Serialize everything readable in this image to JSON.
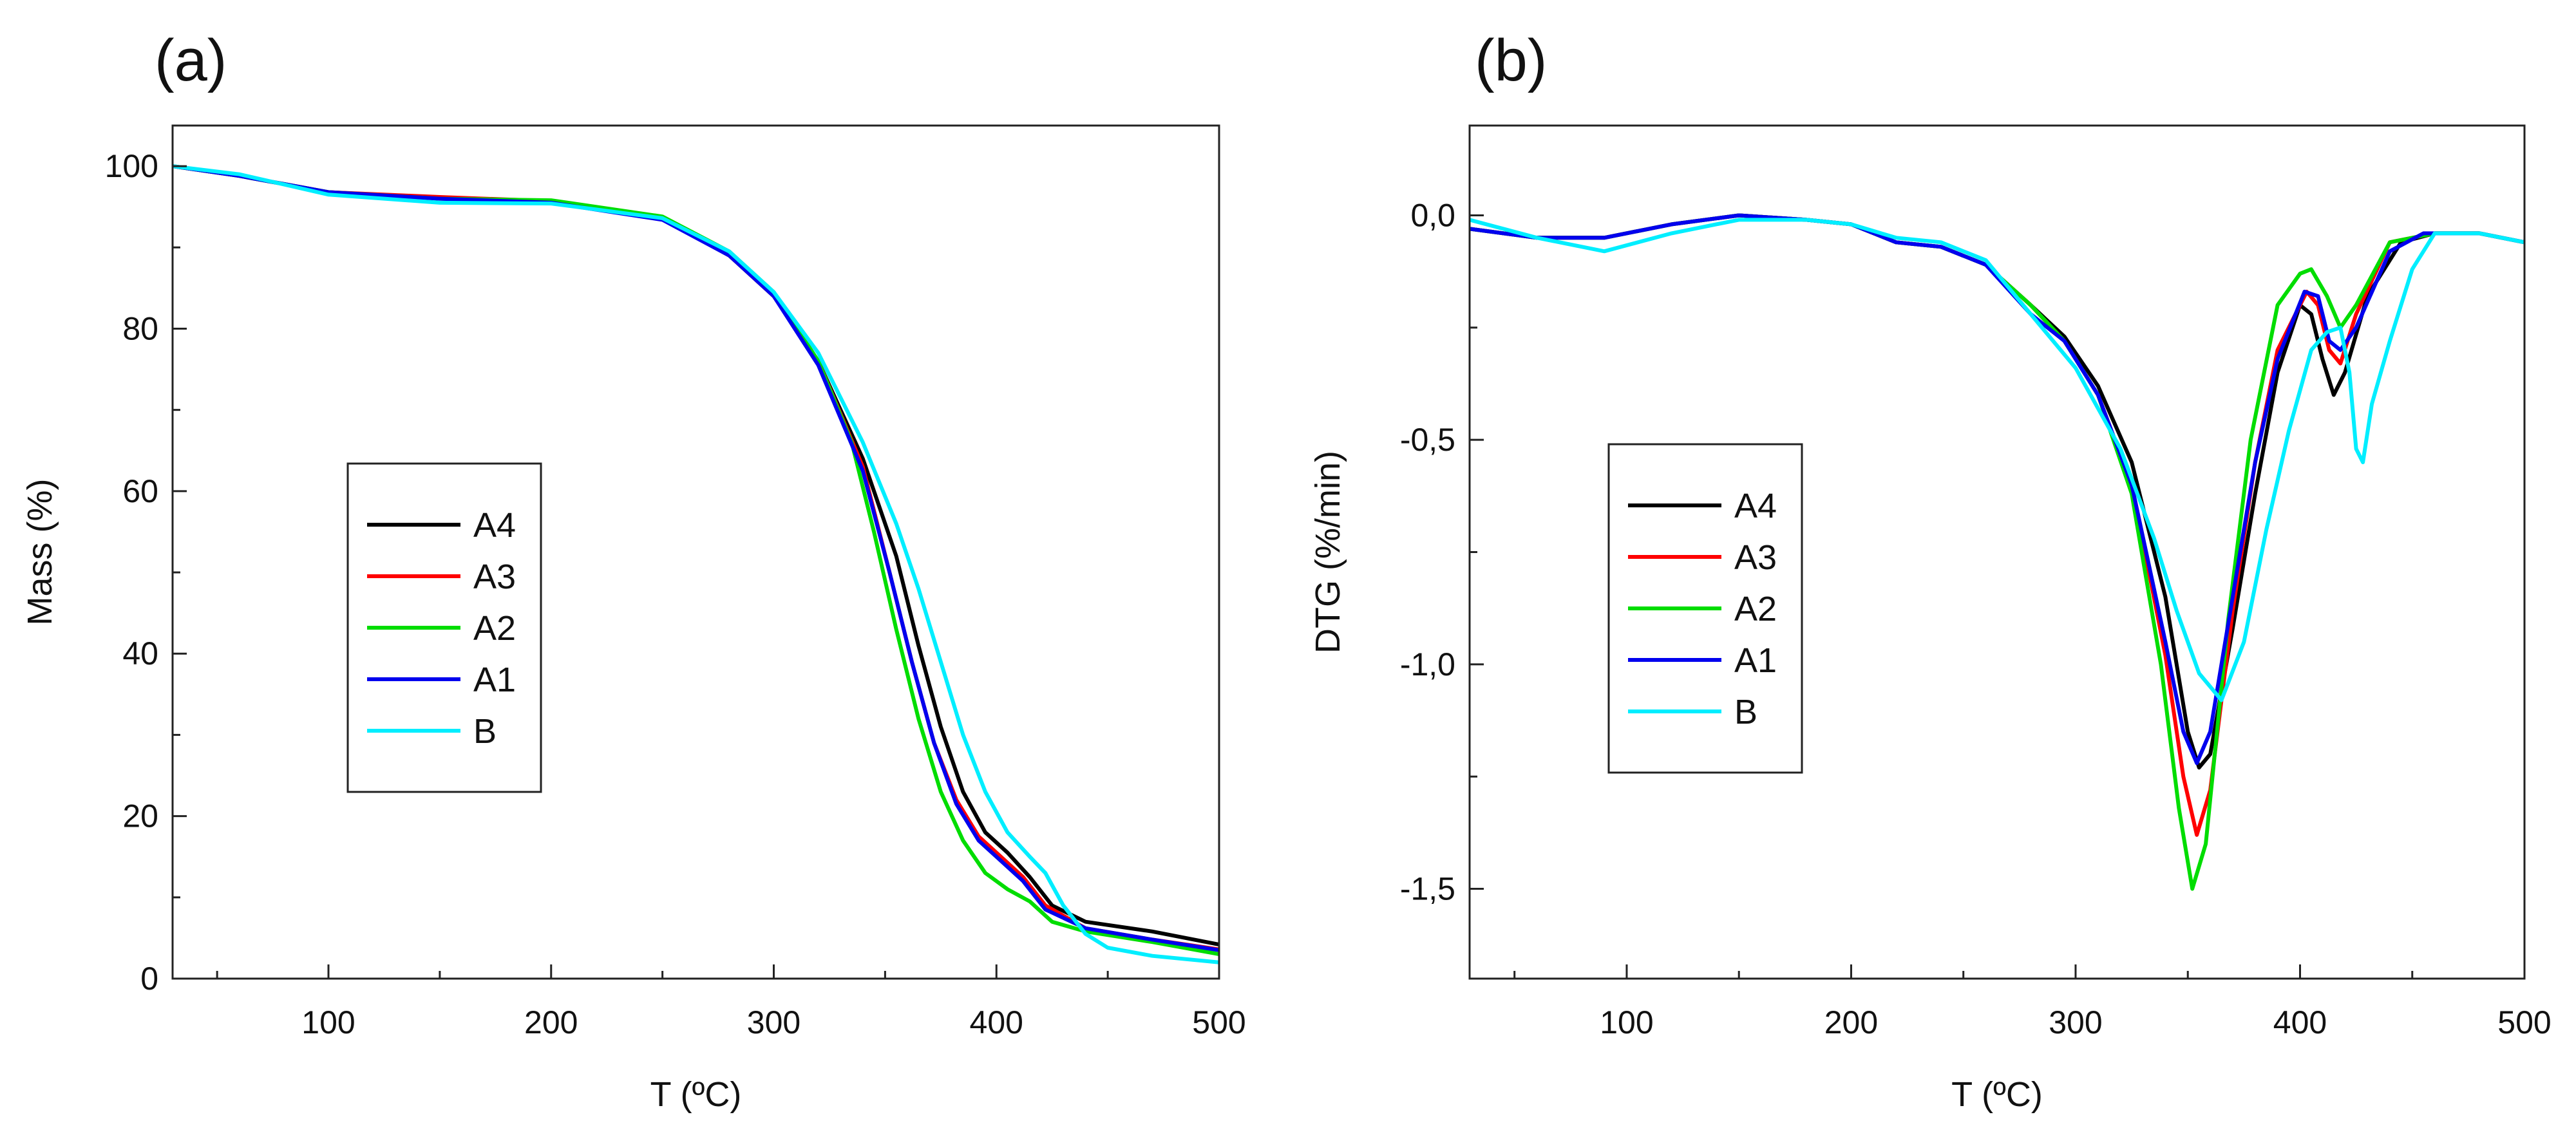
{
  "colors": {
    "A4": "#000000",
    "A3": "#ff0000",
    "A2": "#00dd00",
    "A1": "#0000ee",
    "B": "#00eeff"
  },
  "chart_data": [
    {
      "panel": "(a)",
      "type": "line",
      "xlabel": "T (ºC)",
      "ylabel": "Mass (%)",
      "xlim": [
        30,
        500
      ],
      "ylim": [
        0,
        105
      ],
      "xticks": [
        100,
        200,
        300,
        400,
        500
      ],
      "yticks": [
        0,
        20,
        40,
        60,
        80,
        100
      ],
      "ytick_labels": [
        "0",
        "20",
        "40",
        "60",
        "80",
        "100"
      ],
      "legend": [
        "A4",
        "A3",
        "A2",
        "A1",
        "B"
      ],
      "legend_position": "center-left",
      "series": [
        {
          "name": "A4",
          "points": [
            [
              30,
              100
            ],
            [
              60,
              98.8
            ],
            [
              100,
              96.8
            ],
            [
              150,
              96.1
            ],
            [
              200,
              95.6
            ],
            [
              250,
              93.5
            ],
            [
              280,
              89
            ],
            [
              300,
              84
            ],
            [
              320,
              76
            ],
            [
              340,
              64
            ],
            [
              355,
              52
            ],
            [
              365,
              41
            ],
            [
              375,
              31
            ],
            [
              385,
              23
            ],
            [
              395,
              18
            ],
            [
              405,
              15.5
            ],
            [
              415,
              12.5
            ],
            [
              425,
              9
            ],
            [
              440,
              7
            ],
            [
              470,
              5.8
            ],
            [
              500,
              4.2
            ]
          ]
        },
        {
          "name": "A3",
          "points": [
            [
              30,
              100
            ],
            [
              60,
              98.8
            ],
            [
              100,
              96.8
            ],
            [
              150,
              96.2
            ],
            [
              200,
              95.7
            ],
            [
              250,
              93.6
            ],
            [
              280,
              89
            ],
            [
              300,
              84
            ],
            [
              320,
              76
            ],
            [
              340,
              63
            ],
            [
              352,
              50
            ],
            [
              362,
              39
            ],
            [
              372,
              29
            ],
            [
              382,
              22
            ],
            [
              392,
              17.5
            ],
            [
              402,
              15
            ],
            [
              412,
              12.5
            ],
            [
              422,
              9
            ],
            [
              440,
              6.2
            ],
            [
              470,
              4.8
            ],
            [
              500,
              3.6
            ]
          ]
        },
        {
          "name": "A2",
          "points": [
            [
              30,
              100
            ],
            [
              60,
              98.8
            ],
            [
              100,
              96.8
            ],
            [
              150,
              96
            ],
            [
              200,
              95.8
            ],
            [
              250,
              93.8
            ],
            [
              280,
              89.5
            ],
            [
              300,
              84.5
            ],
            [
              320,
              76
            ],
            [
              335,
              66
            ],
            [
              345,
              55
            ],
            [
              355,
              43
            ],
            [
              365,
              32
            ],
            [
              375,
              23
            ],
            [
              385,
              17
            ],
            [
              395,
              13
            ],
            [
              405,
              11
            ],
            [
              415,
              9.5
            ],
            [
              425,
              7
            ],
            [
              440,
              5.8
            ],
            [
              470,
              4.5
            ],
            [
              500,
              3
            ]
          ]
        },
        {
          "name": "A1",
          "points": [
            [
              30,
              100
            ],
            [
              60,
              98.8
            ],
            [
              100,
              96.8
            ],
            [
              150,
              96
            ],
            [
              200,
              95.5
            ],
            [
              250,
              93.4
            ],
            [
              280,
              89
            ],
            [
              300,
              84
            ],
            [
              320,
              75.5
            ],
            [
              340,
              62.5
            ],
            [
              352,
              50
            ],
            [
              362,
              39
            ],
            [
              372,
              29
            ],
            [
              382,
              21.5
            ],
            [
              392,
              17
            ],
            [
              402,
              14.5
            ],
            [
              412,
              12
            ],
            [
              422,
              8.5
            ],
            [
              440,
              6.2
            ],
            [
              470,
              4.8
            ],
            [
              500,
              3.5
            ]
          ]
        },
        {
          "name": "B",
          "points": [
            [
              30,
              100
            ],
            [
              60,
              99
            ],
            [
              100,
              96.5
            ],
            [
              150,
              95.5
            ],
            [
              200,
              95.4
            ],
            [
              250,
              93.6
            ],
            [
              280,
              89.5
            ],
            [
              300,
              84.5
            ],
            [
              320,
              77
            ],
            [
              340,
              66
            ],
            [
              355,
              56
            ],
            [
              365,
              48
            ],
            [
              375,
              39
            ],
            [
              385,
              30
            ],
            [
              395,
              23
            ],
            [
              405,
              18
            ],
            [
              415,
              15
            ],
            [
              422,
              13
            ],
            [
              430,
              9
            ],
            [
              440,
              5.5
            ],
            [
              450,
              3.8
            ],
            [
              470,
              2.8
            ],
            [
              500,
              2
            ]
          ]
        }
      ]
    },
    {
      "panel": "(b)",
      "type": "line",
      "xlabel": "T (ºC)",
      "ylabel": "DTG (%/min)",
      "xlim": [
        30,
        500
      ],
      "ylim": [
        -1.7,
        0.2
      ],
      "xticks": [
        100,
        200,
        300,
        400,
        500
      ],
      "yticks": [
        0,
        -0.5,
        -1.0,
        -1.5
      ],
      "ytick_labels": [
        "0,0",
        "-0,5",
        "-1,0",
        "-1,5"
      ],
      "legend": [
        "A4",
        "A3",
        "A2",
        "A1",
        "B"
      ],
      "legend_position": "center-left",
      "series": [
        {
          "name": "A4",
          "points": [
            [
              30,
              -0.03
            ],
            [
              60,
              -0.05
            ],
            [
              90,
              -0.05
            ],
            [
              120,
              -0.02
            ],
            [
              150,
              0
            ],
            [
              180,
              -0.01
            ],
            [
              200,
              -0.02
            ],
            [
              220,
              -0.06
            ],
            [
              240,
              -0.07
            ],
            [
              260,
              -0.11
            ],
            [
              280,
              -0.2
            ],
            [
              295,
              -0.27
            ],
            [
              310,
              -0.38
            ],
            [
              325,
              -0.55
            ],
            [
              340,
              -0.85
            ],
            [
              350,
              -1.15
            ],
            [
              355,
              -1.23
            ],
            [
              360,
              -1.2
            ],
            [
              370,
              -0.92
            ],
            [
              380,
              -0.62
            ],
            [
              390,
              -0.35
            ],
            [
              400,
              -0.2
            ],
            [
              405,
              -0.22
            ],
            [
              410,
              -0.32
            ],
            [
              415,
              -0.4
            ],
            [
              420,
              -0.35
            ],
            [
              430,
              -0.18
            ],
            [
              445,
              -0.06
            ],
            [
              460,
              -0.04
            ],
            [
              480,
              -0.04
            ],
            [
              500,
              -0.06
            ]
          ]
        },
        {
          "name": "A3",
          "points": [
            [
              30,
              -0.03
            ],
            [
              60,
              -0.05
            ],
            [
              90,
              -0.05
            ],
            [
              120,
              -0.02
            ],
            [
              150,
              0
            ],
            [
              180,
              -0.01
            ],
            [
              200,
              -0.02
            ],
            [
              220,
              -0.06
            ],
            [
              240,
              -0.07
            ],
            [
              260,
              -0.11
            ],
            [
              280,
              -0.2
            ],
            [
              295,
              -0.28
            ],
            [
              310,
              -0.4
            ],
            [
              325,
              -0.6
            ],
            [
              340,
              -0.98
            ],
            [
              348,
              -1.25
            ],
            [
              354,
              -1.38
            ],
            [
              360,
              -1.28
            ],
            [
              370,
              -0.88
            ],
            [
              380,
              -0.55
            ],
            [
              390,
              -0.3
            ],
            [
              403,
              -0.17
            ],
            [
              408,
              -0.2
            ],
            [
              413,
              -0.3
            ],
            [
              418,
              -0.33
            ],
            [
              425,
              -0.22
            ],
            [
              440,
              -0.06
            ],
            [
              460,
              -0.04
            ],
            [
              480,
              -0.04
            ],
            [
              500,
              -0.06
            ]
          ]
        },
        {
          "name": "A2",
          "points": [
            [
              30,
              -0.03
            ],
            [
              60,
              -0.05
            ],
            [
              90,
              -0.05
            ],
            [
              120,
              -0.02
            ],
            [
              150,
              0
            ],
            [
              180,
              -0.01
            ],
            [
              200,
              -0.02
            ],
            [
              220,
              -0.06
            ],
            [
              240,
              -0.07
            ],
            [
              260,
              -0.11
            ],
            [
              280,
              -0.2
            ],
            [
              295,
              -0.28
            ],
            [
              310,
              -0.4
            ],
            [
              325,
              -0.62
            ],
            [
              338,
              -1.0
            ],
            [
              346,
              -1.32
            ],
            [
              352,
              -1.5
            ],
            [
              358,
              -1.4
            ],
            [
              368,
              -0.9
            ],
            [
              378,
              -0.5
            ],
            [
              390,
              -0.2
            ],
            [
              400,
              -0.13
            ],
            [
              405,
              -0.12
            ],
            [
              412,
              -0.18
            ],
            [
              418,
              -0.25
            ],
            [
              425,
              -0.2
            ],
            [
              440,
              -0.06
            ],
            [
              460,
              -0.04
            ],
            [
              480,
              -0.04
            ],
            [
              500,
              -0.06
            ]
          ]
        },
        {
          "name": "A1",
          "points": [
            [
              30,
              -0.03
            ],
            [
              60,
              -0.05
            ],
            [
              90,
              -0.05
            ],
            [
              120,
              -0.02
            ],
            [
              150,
              0
            ],
            [
              180,
              -0.01
            ],
            [
              200,
              -0.02
            ],
            [
              220,
              -0.06
            ],
            [
              240,
              -0.07
            ],
            [
              260,
              -0.11
            ],
            [
              280,
              -0.22
            ],
            [
              295,
              -0.28
            ],
            [
              310,
              -0.4
            ],
            [
              325,
              -0.6
            ],
            [
              340,
              -0.95
            ],
            [
              348,
              -1.15
            ],
            [
              354,
              -1.22
            ],
            [
              360,
              -1.15
            ],
            [
              370,
              -0.85
            ],
            [
              380,
              -0.55
            ],
            [
              390,
              -0.32
            ],
            [
              402,
              -0.17
            ],
            [
              408,
              -0.18
            ],
            [
              413,
              -0.28
            ],
            [
              418,
              -0.3
            ],
            [
              425,
              -0.25
            ],
            [
              440,
              -0.08
            ],
            [
              455,
              -0.04
            ],
            [
              480,
              -0.04
            ],
            [
              500,
              -0.06
            ]
          ]
        },
        {
          "name": "B",
          "points": [
            [
              30,
              -0.01
            ],
            [
              60,
              -0.05
            ],
            [
              90,
              -0.08
            ],
            [
              120,
              -0.04
            ],
            [
              150,
              -0.01
            ],
            [
              180,
              -0.01
            ],
            [
              200,
              -0.02
            ],
            [
              220,
              -0.05
            ],
            [
              240,
              -0.06
            ],
            [
              260,
              -0.1
            ],
            [
              280,
              -0.22
            ],
            [
              300,
              -0.34
            ],
            [
              320,
              -0.52
            ],
            [
              335,
              -0.72
            ],
            [
              345,
              -0.88
            ],
            [
              355,
              -1.02
            ],
            [
              365,
              -1.08
            ],
            [
              375,
              -0.95
            ],
            [
              385,
              -0.7
            ],
            [
              395,
              -0.48
            ],
            [
              405,
              -0.3
            ],
            [
              412,
              -0.26
            ],
            [
              418,
              -0.25
            ],
            [
              422,
              -0.35
            ],
            [
              425,
              -0.52
            ],
            [
              428,
              -0.55
            ],
            [
              432,
              -0.42
            ],
            [
              440,
              -0.28
            ],
            [
              450,
              -0.12
            ],
            [
              460,
              -0.04
            ],
            [
              480,
              -0.04
            ],
            [
              500,
              -0.06
            ]
          ]
        }
      ]
    }
  ]
}
